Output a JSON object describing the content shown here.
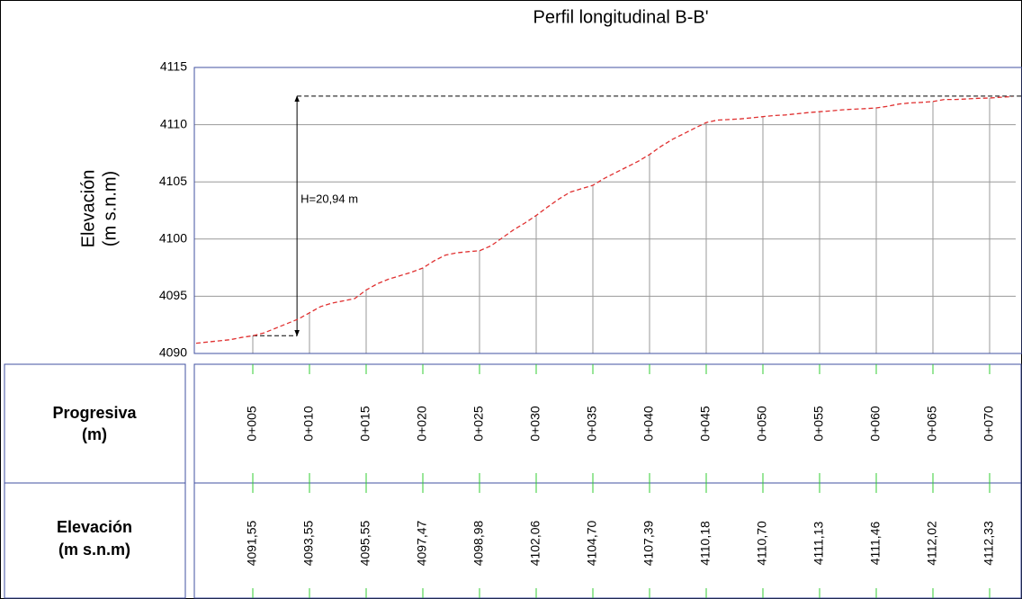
{
  "chart_data": {
    "type": "line",
    "title": "Perfil longitudinal B-B'",
    "ylabel": [
      "Elevación",
      "(m s.n.m)"
    ],
    "x": [
      0,
      1,
      2,
      3,
      4,
      5,
      6,
      7,
      8,
      9,
      10,
      11,
      12,
      13,
      14,
      15,
      16,
      17,
      18,
      19,
      20,
      21,
      22,
      23,
      24,
      25,
      26,
      27,
      28,
      29,
      30,
      31,
      32,
      33,
      34,
      35,
      36,
      37,
      38,
      39,
      40,
      41,
      42,
      43,
      44,
      45,
      46,
      47,
      48,
      49,
      50,
      51,
      52,
      53,
      54,
      55,
      56,
      57,
      58,
      59,
      60,
      61,
      62,
      63,
      64,
      65,
      66,
      67,
      68,
      69,
      70,
      71,
      72
    ],
    "series": [
      {
        "color": "#e03030",
        "values": [
          4090.9,
          4091.0,
          4091.1,
          4091.2,
          4091.4,
          4091.55,
          4091.8,
          4092.2,
          4092.6,
          4093.0,
          4093.55,
          4094.1,
          4094.4,
          4094.6,
          4094.8,
          4095.55,
          4096.1,
          4096.5,
          4096.8,
          4097.1,
          4097.47,
          4098.1,
          4098.6,
          4098.8,
          4098.9,
          4098.98,
          4099.4,
          4100.1,
          4100.8,
          4101.4,
          4102.06,
          4102.8,
          4103.5,
          4104.1,
          4104.4,
          4104.7,
          4105.3,
          4105.8,
          4106.3,
          4106.8,
          4107.39,
          4108.1,
          4108.7,
          4109.2,
          4109.7,
          4110.18,
          4110.4,
          4110.45,
          4110.5,
          4110.6,
          4110.7,
          4110.8,
          4110.85,
          4110.95,
          4111.05,
          4111.13,
          4111.2,
          4111.3,
          4111.35,
          4111.4,
          4111.46,
          4111.6,
          4111.8,
          4111.9,
          4111.95,
          4112.02,
          4112.2,
          4112.2,
          4112.25,
          4112.3,
          4112.33,
          4112.4,
          4112.45
        ]
      }
    ],
    "xlim": [
      0,
      72.3
    ],
    "ylim": [
      4090,
      4115
    ],
    "yticks": [
      4090,
      4095,
      4100,
      4105,
      4110,
      4115
    ],
    "xticks": [
      {
        "value": 5,
        "label": "0+005"
      },
      {
        "value": 10,
        "label": "0+010"
      },
      {
        "value": 15,
        "label": "0+015"
      },
      {
        "value": 20,
        "label": "0+020"
      },
      {
        "value": 25,
        "label": "0+025"
      },
      {
        "value": 30,
        "label": "0+030"
      },
      {
        "value": 35,
        "label": "0+035"
      },
      {
        "value": 40,
        "label": "0+040"
      },
      {
        "value": 45,
        "label": "0+045"
      },
      {
        "value": 50,
        "label": "0+050"
      },
      {
        "value": 55,
        "label": "0+055"
      },
      {
        "value": 60,
        "label": "0+060"
      },
      {
        "value": 65,
        "label": "0+065"
      },
      {
        "value": 70,
        "label": "0+070"
      }
    ],
    "station_elevations": [
      4091.55,
      4093.55,
      4095.55,
      4097.47,
      4098.98,
      4102.06,
      4104.7,
      4107.39,
      4110.18,
      4110.7,
      4111.13,
      4111.46,
      4112.02,
      4112.33
    ],
    "value_labels": [
      "4091,55",
      "4093,55",
      "4095,55",
      "4097,47",
      "4098,98",
      "4102,06",
      "4104,70",
      "4107,39",
      "4110,18",
      "4110,70",
      "4111,13",
      "4111,46",
      "4112,02",
      "4112,33"
    ],
    "row_labels": [
      [
        "Progresiva",
        "(m)"
      ],
      [
        "Elevación",
        "(m s.n.m)"
      ]
    ],
    "annotation": {
      "text": "H=20,94 m",
      "x": 8.9,
      "y_from": 4091.55,
      "y_to": 4112.49
    },
    "grid": true
  }
}
